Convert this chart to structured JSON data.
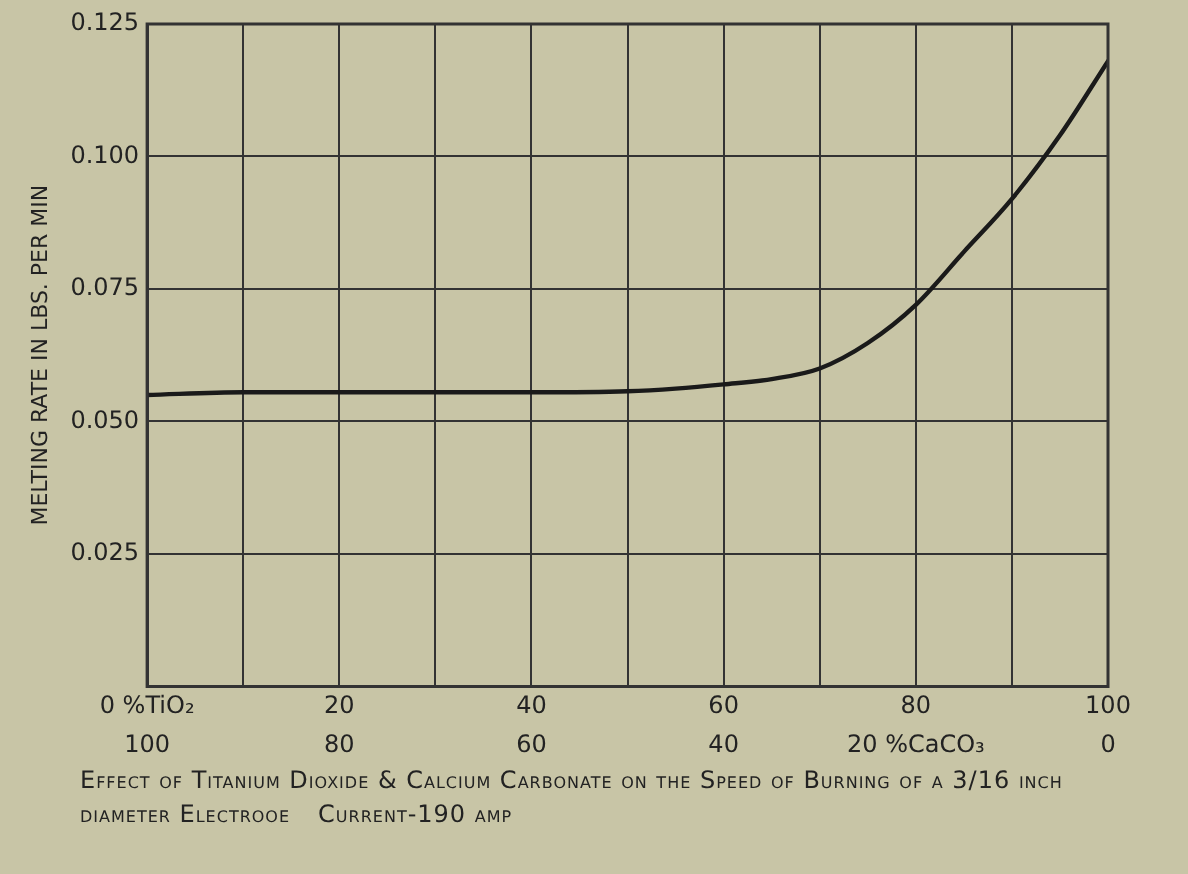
{
  "chart_data": {
    "type": "line",
    "title": "Effect of Titanium Dioxide & Calcium Carbonate on the Speed of Burning of a 3/16 inch diameter Electrooe",
    "annotations": [
      "Current-190 amp"
    ],
    "ylabel": "MELTING RATE IN LBS. PER MIN",
    "x": [
      0,
      10,
      20,
      30,
      40,
      50,
      55,
      60,
      65,
      70,
      75,
      80,
      85,
      90,
      95,
      100
    ],
    "series": [
      {
        "color": "#1a1a1a",
        "values": [
          0.055,
          0.0555,
          0.0555,
          0.0555,
          0.0555,
          0.0557,
          0.0562,
          0.057,
          0.058,
          0.06,
          0.0648,
          0.072,
          0.082,
          0.092,
          0.104,
          0.118
        ]
      }
    ],
    "xlim": [
      0,
      100
    ],
    "xticks": [
      {
        "value": 0,
        "label": "0 %TiO₂"
      },
      {
        "value": 10,
        "label": null
      },
      20,
      {
        "value": 30,
        "label": null
      },
      40,
      {
        "value": 50,
        "label": null
      },
      60,
      {
        "value": 70,
        "label": null
      },
      80,
      {
        "value": 90,
        "label": null
      },
      100
    ],
    "x2lim": [
      100,
      0
    ],
    "x2ticks": [
      100,
      80,
      60,
      40,
      {
        "value": 20,
        "label": "20 %CaCO₃"
      },
      0
    ],
    "ylim": [
      0,
      0.125
    ],
    "yticks": [
      0.025,
      {
        "value": 0.05,
        "label": "0.050"
      },
      0.075,
      {
        "value": 0.1,
        "label": "0.100"
      },
      0.125
    ],
    "grid": true,
    "legend": false,
    "marker": "none",
    "line_style": "solid"
  }
}
